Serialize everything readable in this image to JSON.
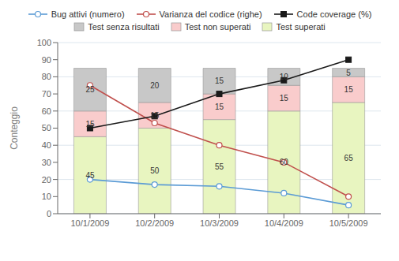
{
  "chart_data": {
    "type": "bar",
    "stacked": true,
    "grid": true,
    "legend": "top",
    "ylabel": "Conteggio",
    "categories": [
      "10/1/2009",
      "10/2/2009",
      "10/3/2009",
      "10/4/2009",
      "10/5/2009"
    ],
    "ylim": [
      0,
      100
    ],
    "yticks": [
      0,
      10,
      20,
      30,
      40,
      50,
      60,
      70,
      80,
      90,
      100
    ],
    "series": [
      {
        "name": "Test superati",
        "type": "bar",
        "color": "#e8f5c0",
        "data_labels": true,
        "values": [
          45,
          50,
          55,
          60,
          65
        ]
      },
      {
        "name": "Test non superati",
        "type": "bar",
        "color": "#f9cccc",
        "data_labels": true,
        "values": [
          15,
          15,
          15,
          15,
          15
        ]
      },
      {
        "name": "Test senza risultati",
        "type": "bar",
        "color": "#c8c8c8",
        "data_labels": true,
        "values": [
          25,
          20,
          15,
          10,
          5
        ]
      },
      {
        "name": "Bug attivi (numero)",
        "type": "line",
        "color": "#5b9bd5",
        "marker": "circle",
        "values": [
          20,
          17,
          16,
          12,
          5
        ]
      },
      {
        "name": "Varianza del codice (righe)",
        "type": "line",
        "color": "#c0504d",
        "marker": "circle",
        "values": [
          75,
          53,
          40,
          30,
          10
        ]
      },
      {
        "name": "Code coverage (%)",
        "type": "line",
        "color": "#1a1a1a",
        "marker": "square",
        "values": [
          50,
          57,
          70,
          78,
          90
        ]
      }
    ]
  }
}
